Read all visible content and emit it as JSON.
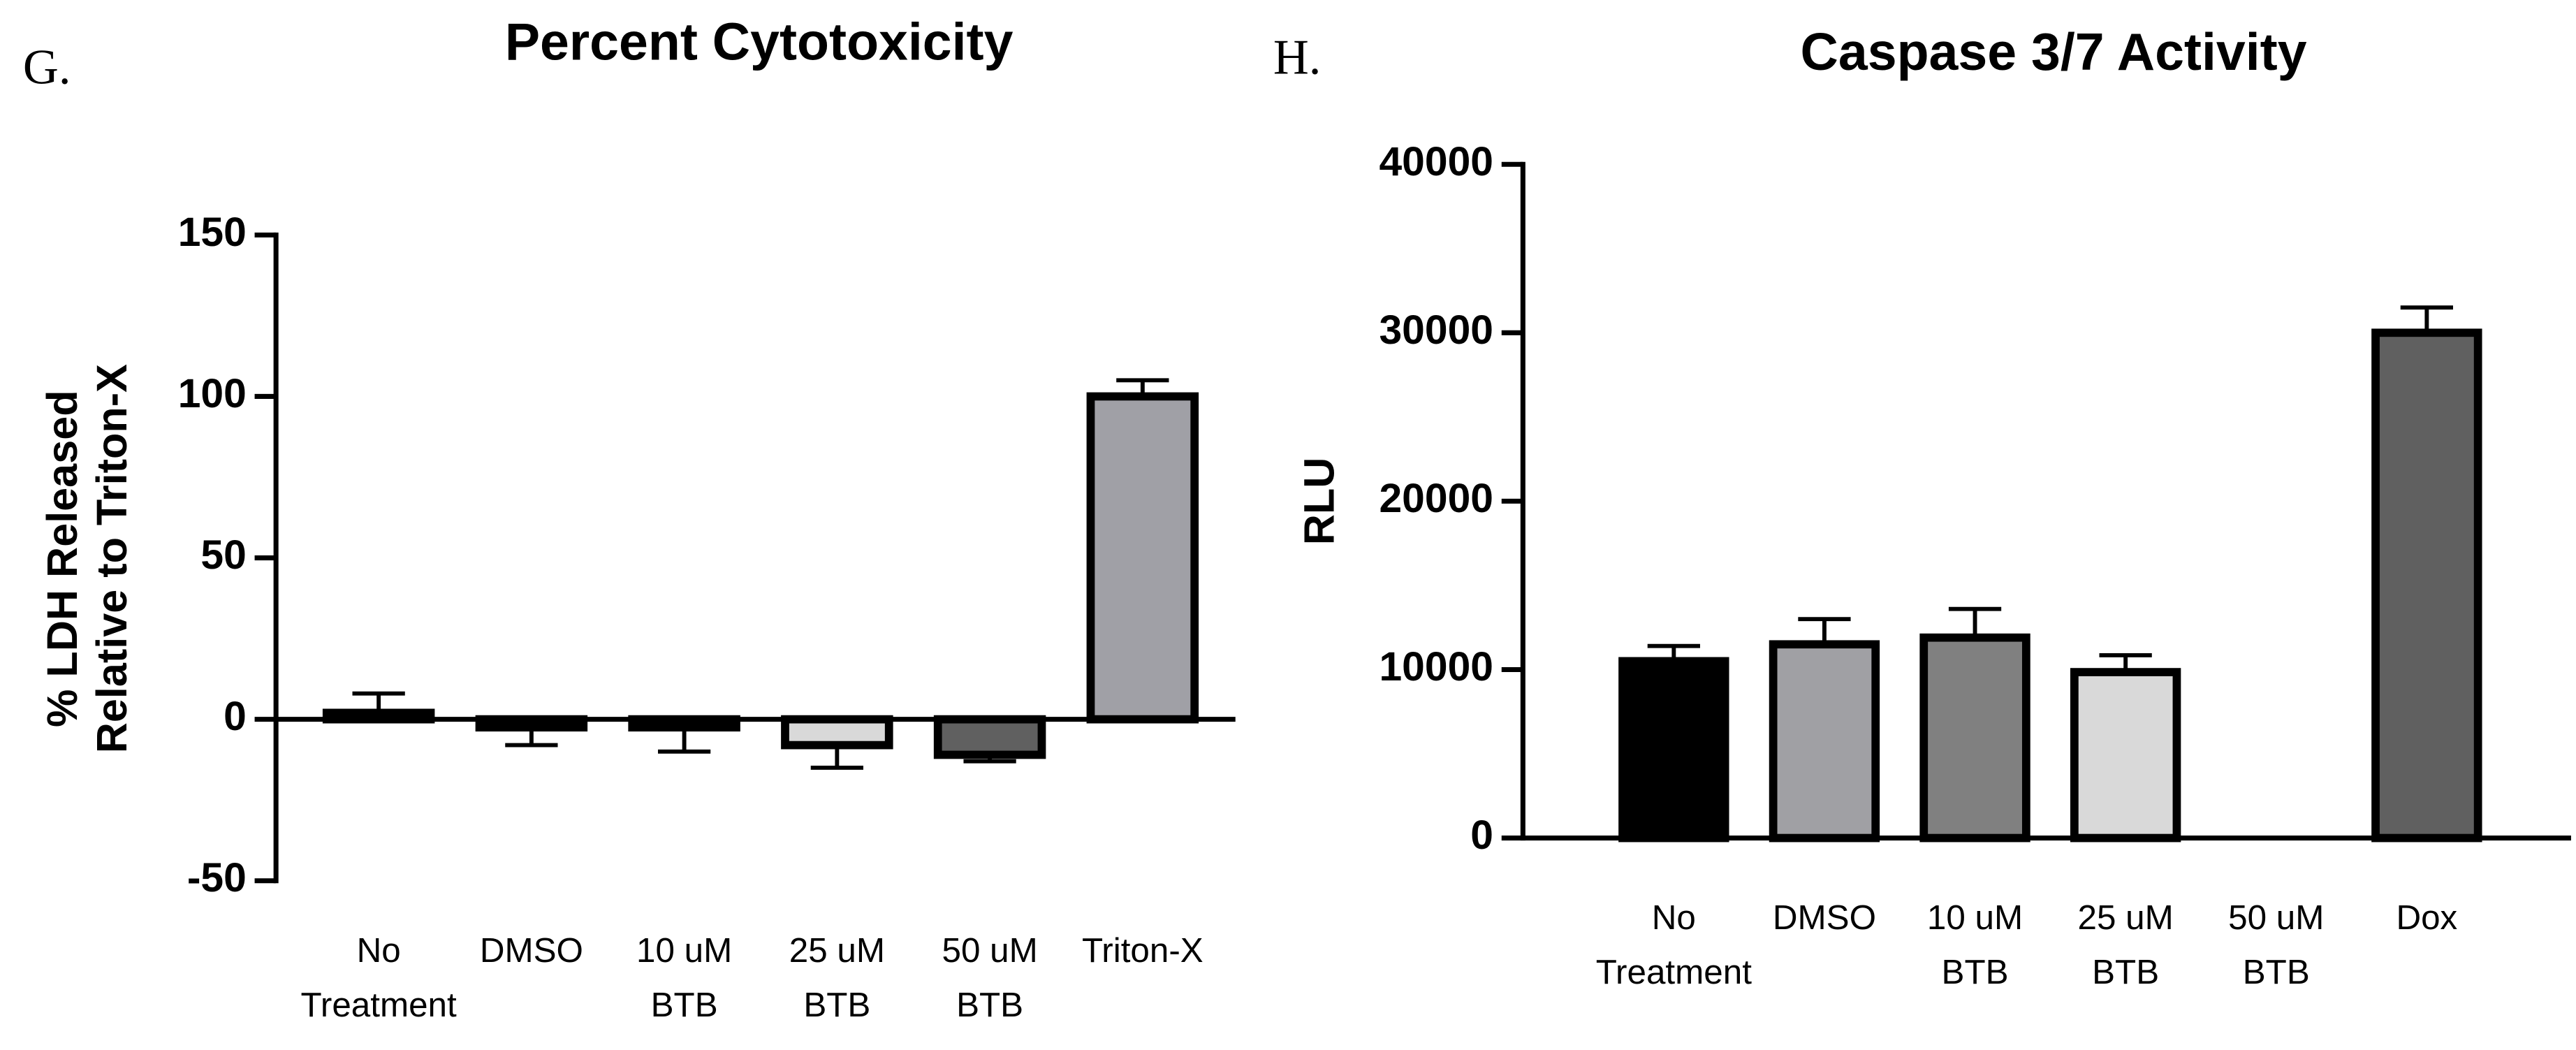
{
  "chart_data": [
    {
      "type": "bar",
      "panel": "G.",
      "title": "Percent Cytotoxicity",
      "y_label": [
        "% LDH Released",
        "Relative to Triton-X"
      ],
      "categories": [
        [
          "No",
          "Treatment"
        ],
        [
          "DMSO"
        ],
        [
          "10 uM",
          "BTB"
        ],
        [
          "25 uM",
          "BTB"
        ],
        [
          "50 uM",
          "BTB"
        ],
        [
          "Triton-X"
        ]
      ],
      "values": [
        2,
        -2.5,
        -2.5,
        -8,
        -11,
        100
      ],
      "errors": [
        6,
        5.5,
        7.5,
        7,
        2,
        5
      ],
      "colors": [
        "#ffffff",
        "#ffffff",
        "#ffffff",
        "#d9d9d9",
        "#606060",
        "#a0a0a6"
      ],
      "ylim": [
        -50,
        150
      ],
      "yticks": [
        -50,
        0,
        50,
        100,
        150
      ]
    },
    {
      "type": "bar",
      "panel": "H.",
      "title": "Caspase 3/7 Activity",
      "y_label": [
        "RLU"
      ],
      "categories": [
        [
          "No",
          "Treatment"
        ],
        [
          "DMSO"
        ],
        [
          "10 uM",
          "BTB"
        ],
        [
          "25 uM",
          "BTB"
        ],
        [
          "50 uM",
          "BTB"
        ],
        [
          "Dox"
        ]
      ],
      "values": [
        10500,
        11500,
        11900,
        9850,
        null,
        30000
      ],
      "errors": [
        900,
        1500,
        1700,
        1000,
        null,
        1500
      ],
      "colors": [
        "#000000",
        "#a0a0a4",
        "#808080",
        "#d9d9d9",
        "#606060",
        "#606060"
      ],
      "ylim": [
        0,
        40000
      ],
      "yticks": [
        0,
        10000,
        20000,
        30000,
        40000
      ]
    }
  ]
}
